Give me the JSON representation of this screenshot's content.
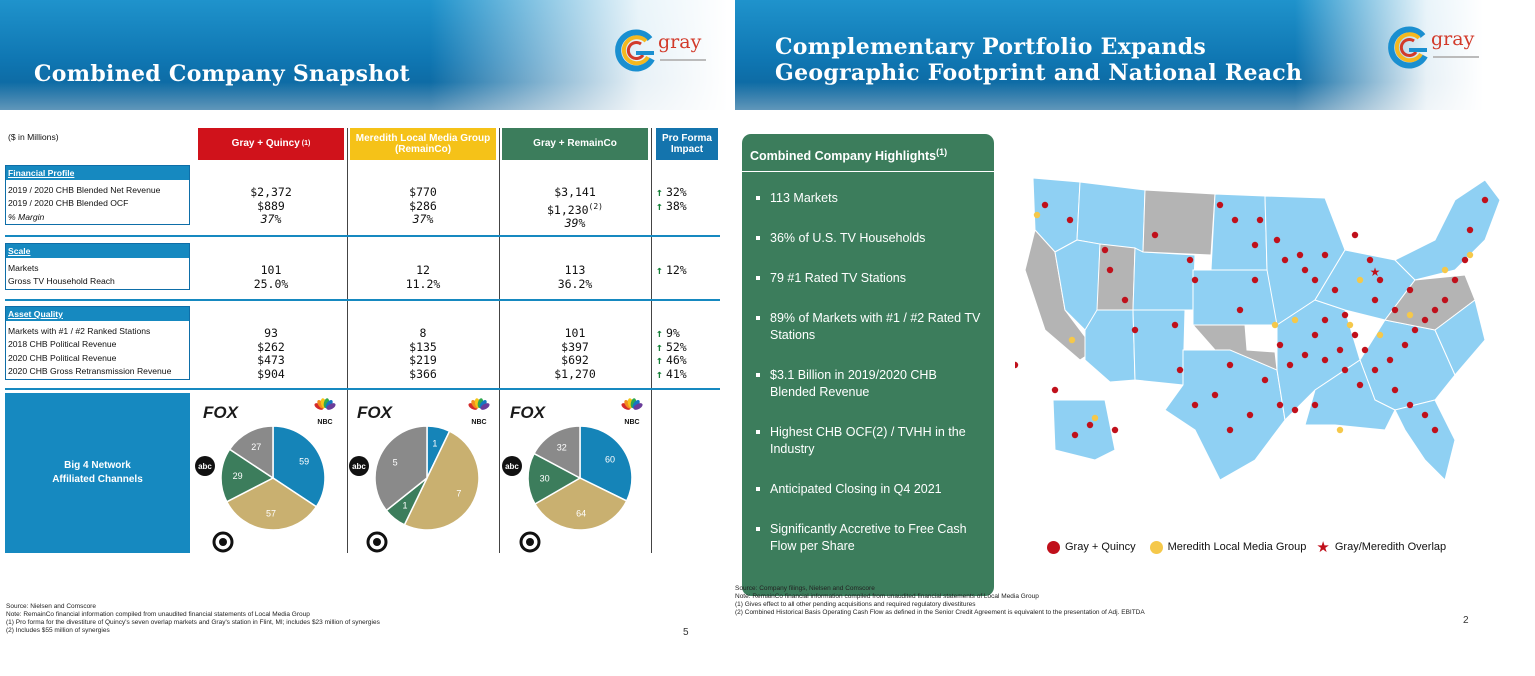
{
  "slide1": {
    "title": "Combined Company Snapshot",
    "logo_text": "gray",
    "units_label": "($ in Millions)",
    "columns": [
      {
        "label": "Gray + Quincy",
        "sup": "(1)",
        "color": "#d0121b"
      },
      {
        "label": "Meredith Local Media Group (RemainCo)",
        "color": "#f5c218"
      },
      {
        "label": "Gray + RemainCo",
        "color": "#3c7d5c"
      },
      {
        "label": "Pro Forma Impact",
        "color": "#1474ad"
      }
    ],
    "sections": {
      "financial": {
        "title": "Financial Profile",
        "rows": [
          "2019 / 2020 CHB Blended Net Revenue",
          "2019 / 2020 CHB Blended OCF",
          "% Margin"
        ],
        "gq": [
          "$2,372",
          "$889",
          "37%"
        ],
        "rc": [
          "$770",
          "$286",
          "37%"
        ],
        "grc": [
          "$3,141",
          "$1,230",
          "39%"
        ],
        "grc_sup": "(2)",
        "impact": [
          "32%",
          "38%"
        ]
      },
      "scale": {
        "title": "Scale",
        "rows": [
          "Markets",
          "Gross TV Household Reach"
        ],
        "gq": [
          "101",
          "25.0%"
        ],
        "rc": [
          "12",
          "11.2%"
        ],
        "grc": [
          "113",
          "36.2%"
        ],
        "impact": [
          "12%"
        ]
      },
      "asset": {
        "title": "Asset Quality",
        "rows": [
          "Markets with #1 / #2 Ranked Stations",
          "2018 CHB Political Revenue",
          "2020 CHB Political Revenue",
          "2020 CHB Gross Retransmission Revenue"
        ],
        "gq": [
          "93",
          "$262",
          "$473",
          "$904"
        ],
        "rc": [
          "8",
          "$135",
          "$219",
          "$366"
        ],
        "grc": [
          "101",
          "$397",
          "$692",
          "$1,270"
        ],
        "impact": [
          "9%",
          "52%",
          "46%",
          "41%"
        ]
      }
    },
    "big4_label": "Big 4 Network Affiliated Channels",
    "network_labels": {
      "fox": "FOX",
      "nbc": "NBC",
      "abc": "abc",
      "cbs": "CBS"
    },
    "pies": [
      {
        "name": "Gray + Quincy",
        "nbc": 59,
        "cbs": 57,
        "abc": 29,
        "fox": 27
      },
      {
        "name": "RemainCo",
        "nbc": 1,
        "cbs": 7,
        "abc": 1,
        "fox": 5
      },
      {
        "name": "Gray + RemainCo",
        "nbc": 60,
        "cbs": 64,
        "abc": 30,
        "fox": 32
      }
    ],
    "pie_colors": {
      "nbc": "#1584b8",
      "cbs": "#c9b070",
      "abc": "#3c7d5c",
      "fox": "#8a8a8a"
    },
    "footnotes": [
      "Source: Nielsen and Comscore",
      "Note: RemainCo financial information compiled from unaudited financial statements of Local Media Group",
      "(1)    Pro forma for the divestiture of Quincy's seven overlap markets and Gray's station in Flint, MI; includes $23 million of synergies",
      "(2)    Includes $55 million of synergies"
    ],
    "page_number": "5"
  },
  "slide2": {
    "title_line1": "Complementary Portfolio Expands",
    "title_line2": "Geographic Footprint and National Reach",
    "logo_text": "gray",
    "highlights_title": "Combined Company Highlights",
    "highlights_sup": "(1)",
    "highlights": [
      "113 Markets",
      "36% of U.S. TV Households",
      "79 #1 Rated TV Stations",
      "89% of Markets with #1 / #2 Rated TV Stations",
      "$3.1 Billion in 2019/2020 CHB Blended Revenue",
      "Highest CHB OCF(2) / TVHH in the Industry",
      "Anticipated Closing in Q4 2021",
      "Significantly Accretive to Free Cash Flow per Share"
    ],
    "legend": [
      {
        "label": "Gray + Quincy",
        "color": "#c0101b"
      },
      {
        "label": "Meredith Local Media Group",
        "color": "#f5c84a"
      },
      {
        "label": "Gray/Meredith Overlap",
        "color": "#c0101b"
      }
    ],
    "map_colors": {
      "coverage": "#8fd0f3",
      "other": "#b4b4b4"
    },
    "footnotes": [
      "Source: Company filings, Nielsen and Comscore",
      "Note: RemainCo financial information compiled from unaudited financial statements of Local Media Group",
      "(1)    Gives effect to all other pending acquisitions and required regulatory divestitures",
      "(2)    Combined Historical Basis Operating Cash Flow as defined in the Senior Credit Agreement is equivalent to the presentation of Adj. EBITDA"
    ],
    "page_number": "2"
  }
}
